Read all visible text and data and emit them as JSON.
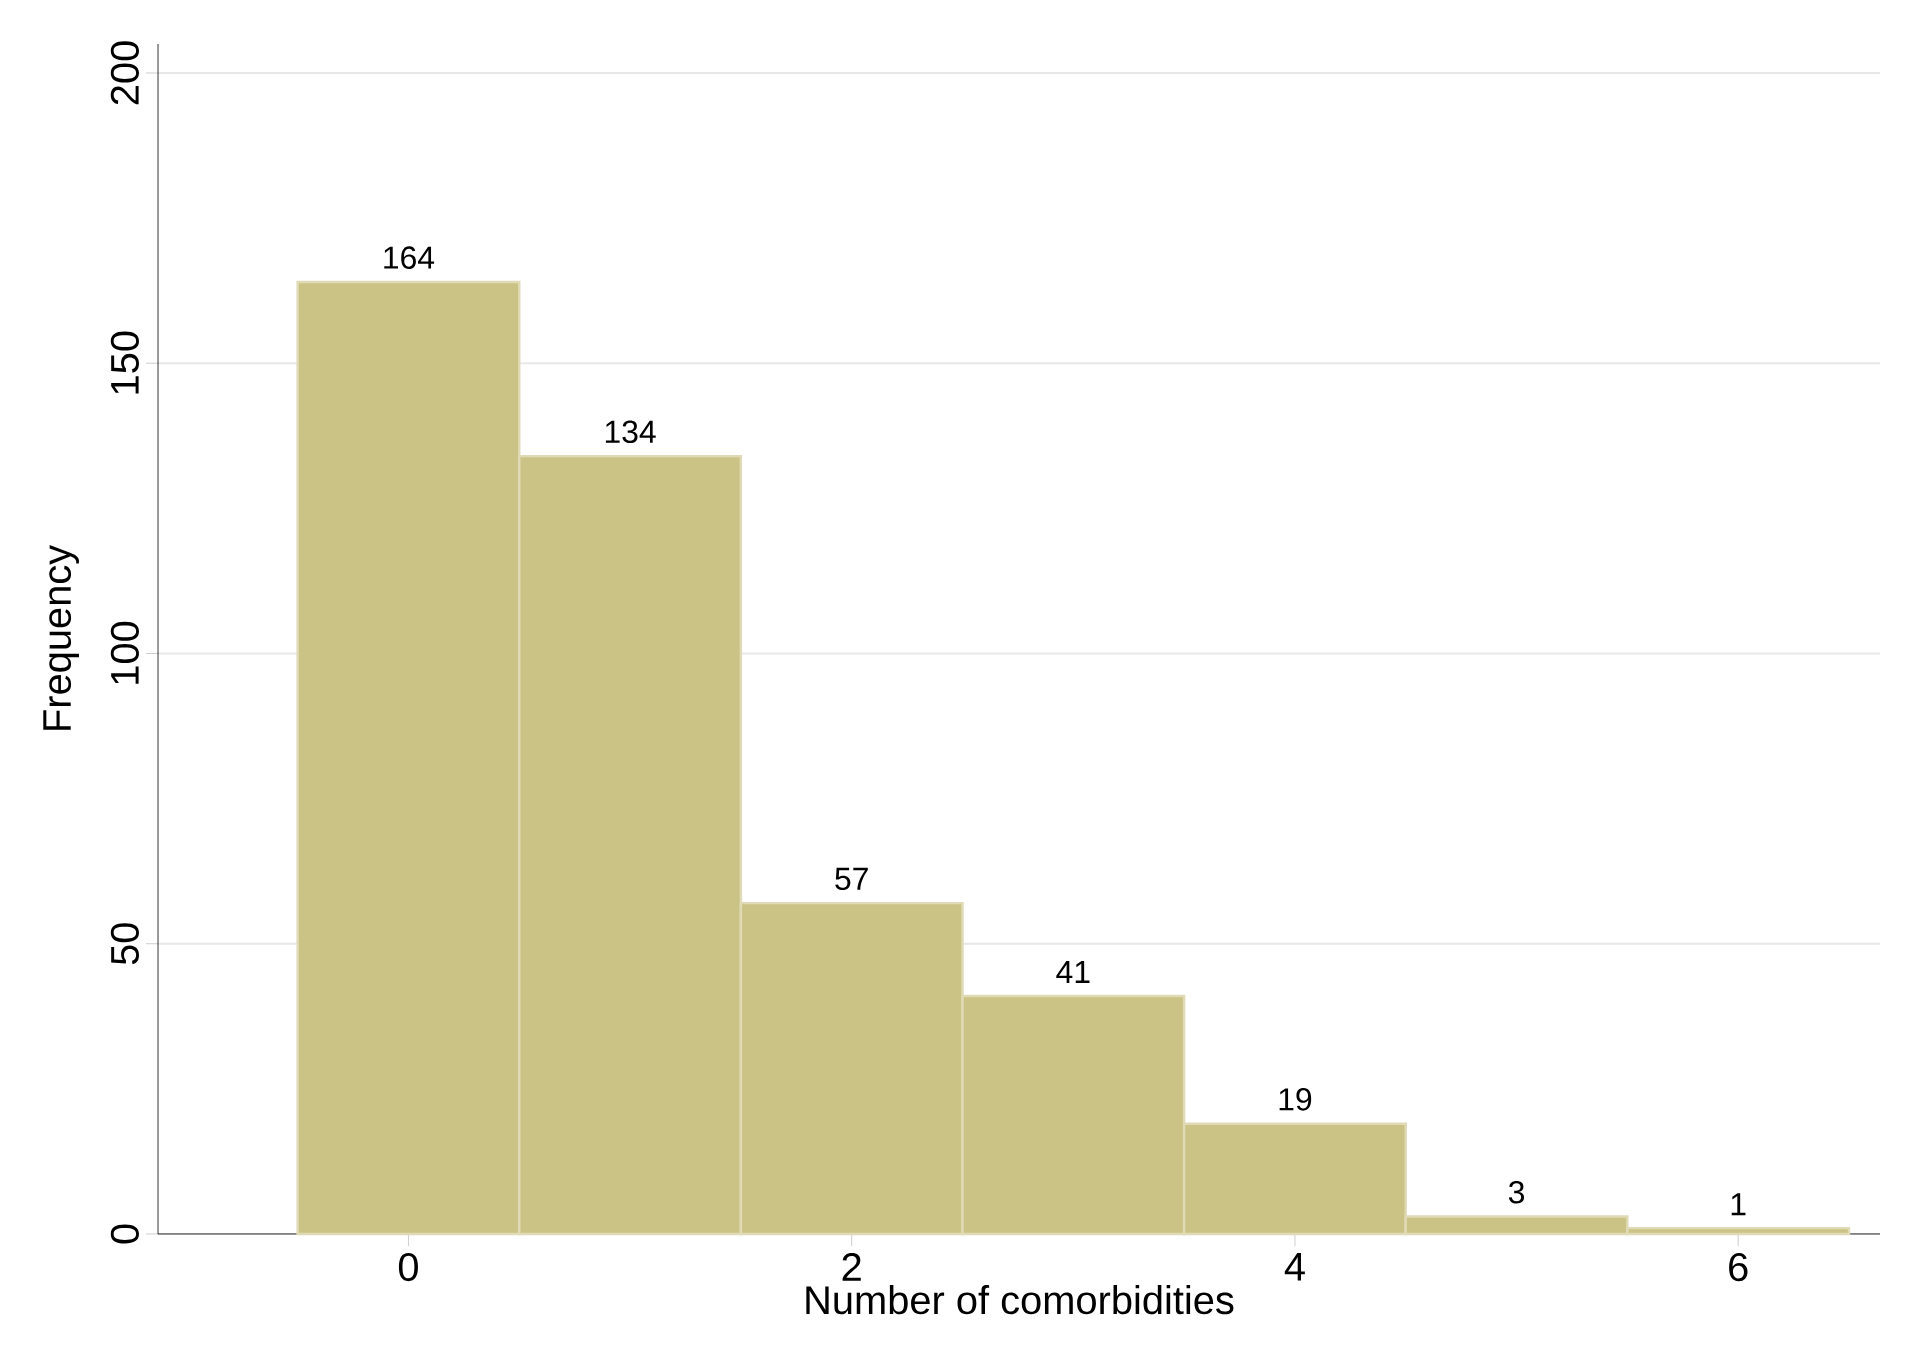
{
  "chart_data": {
    "type": "histogram",
    "xlabel": "Number of comorbidities",
    "ylabel": "Frequency",
    "bins": [
      -0.5,
      0.5,
      1.5,
      2.5,
      3.5,
      4.5,
      5.5,
      6.5
    ],
    "values": [
      164,
      134,
      57,
      41,
      19,
      3,
      1
    ],
    "color": "#cbc386",
    "xlim": [
      -1.13,
      6.64
    ],
    "ylim": [
      0,
      205
    ],
    "xticks": [
      0,
      2,
      4,
      6
    ],
    "yticks": [
      0,
      50,
      100,
      150,
      200
    ],
    "grid": "y",
    "data_labels": true
  }
}
